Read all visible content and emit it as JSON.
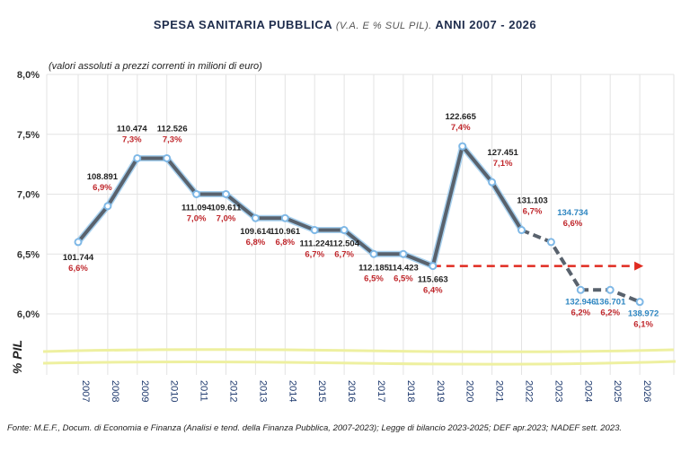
{
  "chart_data": {
    "type": "line",
    "title_main": "SPESA SANITARIA PUBBLICA",
    "title_paren": "(V.A. E % SUL PIL).",
    "title_tail": "ANNI 2007 - 2026",
    "subtitle": "(valori assoluti a prezzi correnti in milioni di euro)",
    "ylabel": "% PIL",
    "ylim": [
      6.0,
      8.0
    ],
    "yticks": [
      "6,0%",
      "6,5%",
      "7,0%",
      "7,5%",
      "8,0%"
    ],
    "ytick_values": [
      6.0,
      6.5,
      7.0,
      7.5,
      8.0
    ],
    "categories": [
      "2007",
      "2008",
      "2009",
      "2010",
      "2011",
      "2012",
      "2013",
      "2014",
      "2015",
      "2016",
      "2017",
      "2018",
      "2019",
      "2020",
      "2021",
      "2022",
      "2023",
      "2024",
      "2025",
      "2026"
    ],
    "pct_values": [
      6.6,
      6.9,
      7.3,
      7.3,
      7.0,
      7.0,
      6.8,
      6.8,
      6.7,
      6.7,
      6.5,
      6.5,
      6.4,
      7.4,
      7.1,
      6.7,
      6.6,
      6.2,
      6.2,
      6.1
    ],
    "pct_labels": [
      "6,6%",
      "6,9%",
      "7,3%",
      "7,3%",
      "7,0%",
      "7,0%",
      "6,8%",
      "6,8%",
      "6,7%",
      "6,7%",
      "6,5%",
      "6,5%",
      "6,4%",
      "7,4%",
      "7,1%",
      "6,7%",
      "6,6%",
      "6,2%",
      "6,2%",
      "6,1%"
    ],
    "abs_labels": [
      "101.744",
      "108.891",
      "110.474",
      "112.526",
      "111.094",
      "109.611",
      "109.614",
      "110.961",
      "111.224",
      "112.504",
      "112.185",
      "114.423",
      "115.663",
      "122.665",
      "127.451",
      "131.103",
      "134.734",
      "132.946",
      "136.701",
      "138.972"
    ],
    "forecast_from": "2022",
    "reference_line": {
      "value": 6.4,
      "from": "2019",
      "to": "2026",
      "color": "#e02b20"
    },
    "grid": true,
    "colors": {
      "line": "#59626d",
      "halo": "#a9d2f0",
      "pct_label": "#c0282d",
      "abs_label": "#222222",
      "forecast_abs_label": "#2e86c1",
      "axis_text": "#1f3a6e",
      "break_band": "#eef0a0"
    }
  },
  "source": "Fonte: M.E.F.,  Docum. di Economia e Finanza  (Analisi e tend. della Finanza Pubblica, 2007-2023);  Legge di bilancio 2023-2025; DEF apr.2023;  NADEF  sett.  2023."
}
